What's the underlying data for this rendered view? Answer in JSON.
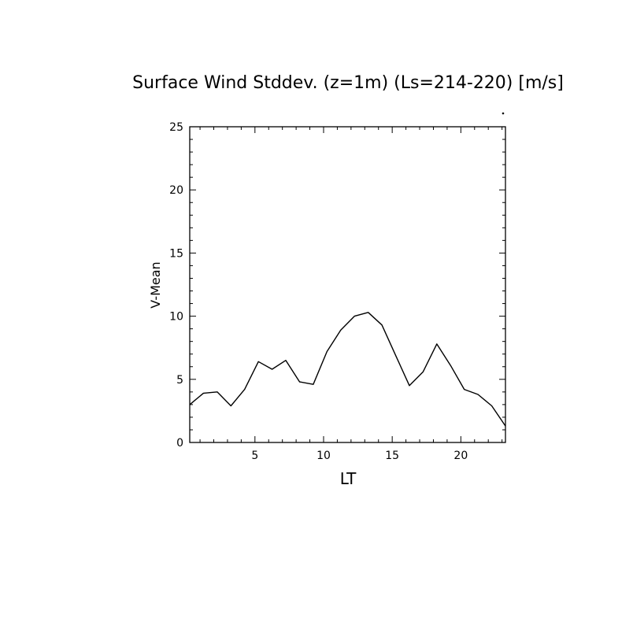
{
  "chart_data": {
    "type": "line",
    "title": "Surface Wind Stddev. (z=1m) (Ls=214-220) [m/s]",
    "xlabel": "LT",
    "ylabel": "V-Mean",
    "xlim": [
      0.25,
      23.25
    ],
    "ylim": [
      0,
      25
    ],
    "x_ticks": [
      5,
      10,
      15,
      20
    ],
    "y_ticks": [
      0,
      5,
      10,
      15,
      20,
      25
    ],
    "grid": false,
    "series": [
      {
        "x": [
          0.25,
          1.25,
          2.25,
          3.25,
          4.25,
          5.25,
          6.25,
          7.25,
          8.25,
          9.25,
          10.25,
          11.25,
          12.25,
          13.25,
          14.25,
          15.25,
          16.25,
          17.25,
          18.25,
          19.25,
          20.25,
          21.25,
          22.25,
          23.25
        ],
        "y": [
          3.0,
          3.9,
          4.0,
          2.9,
          4.2,
          6.4,
          5.8,
          6.5,
          4.8,
          4.6,
          7.2,
          8.9,
          10.0,
          10.3,
          9.3,
          6.9,
          4.5,
          5.6,
          7.8,
          6.1,
          4.2,
          3.8,
          2.9,
          1.3
        ]
      }
    ]
  }
}
